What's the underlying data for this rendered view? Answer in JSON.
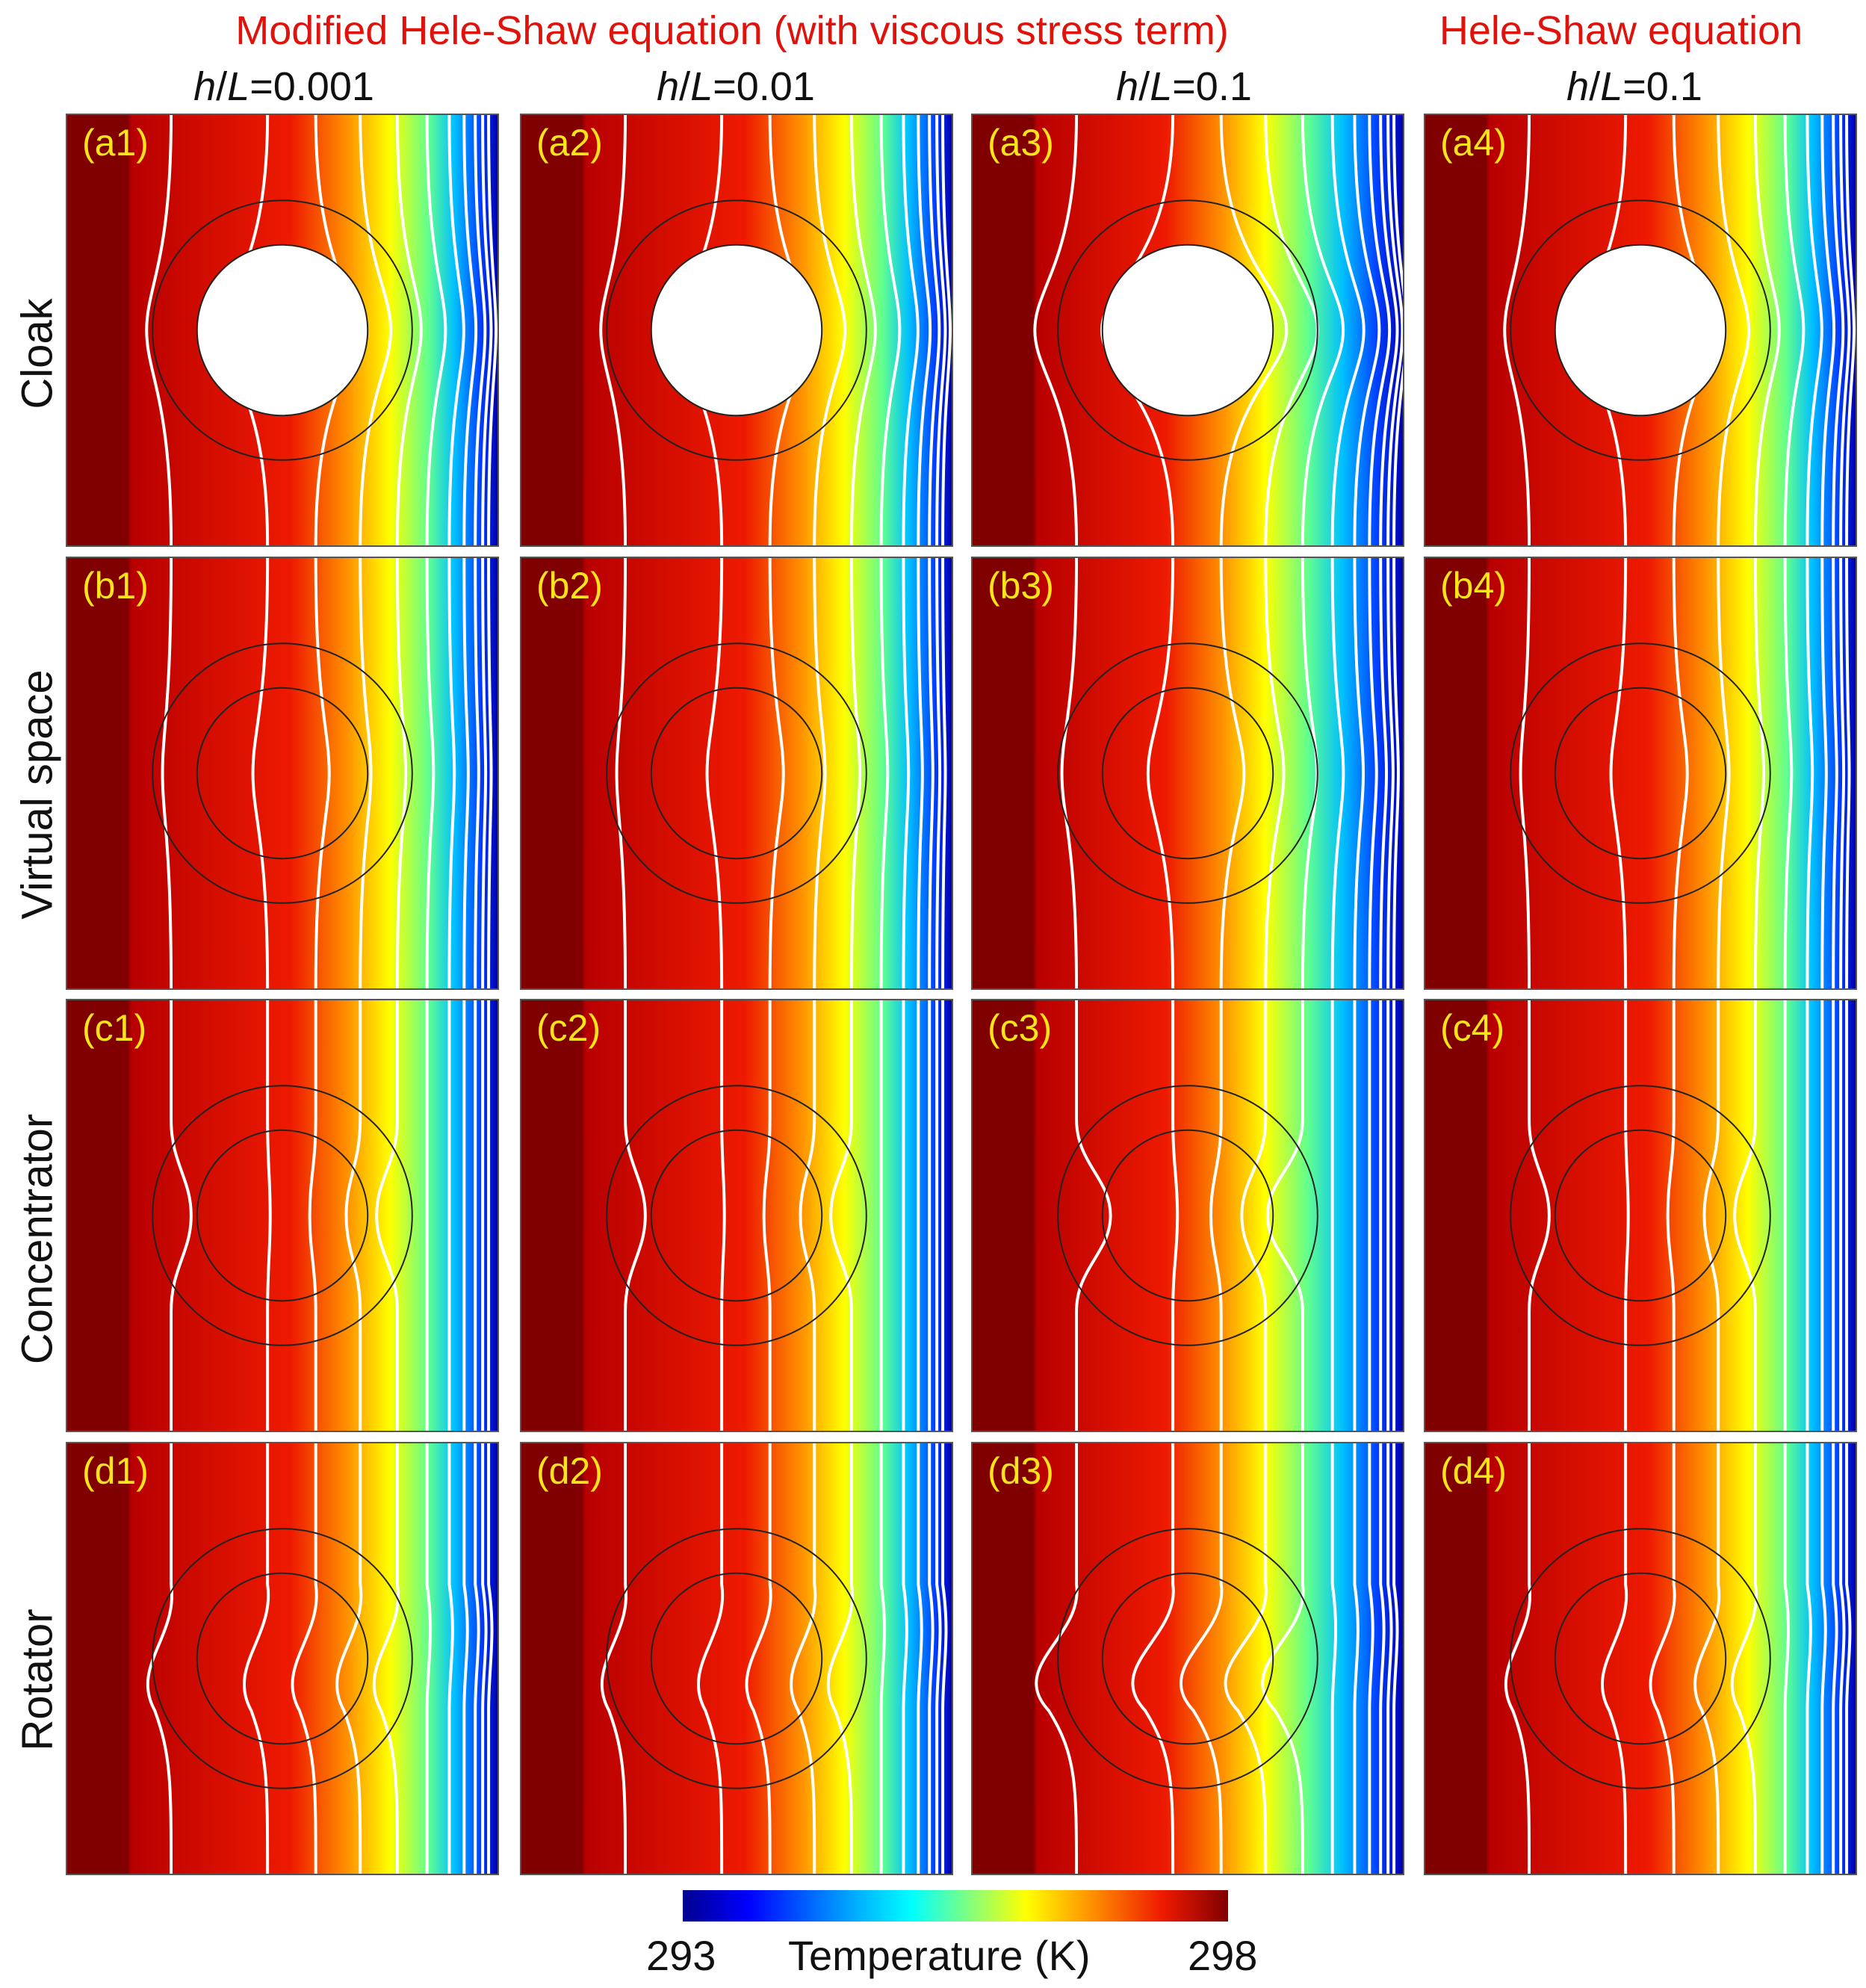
{
  "headers": {
    "modified": "Modified Hele-Shaw equation (with viscous stress term)",
    "heleshaw": "Hele-Shaw equation"
  },
  "columns": [
    {
      "h": "h",
      "slash": "/",
      "l": "L",
      "value": "=0.001"
    },
    {
      "h": "h",
      "slash": "/",
      "l": "L",
      "value": "=0.01"
    },
    {
      "h": "h",
      "slash": "/",
      "l": "L",
      "value": "=0.1"
    },
    {
      "h": "h",
      "slash": "/",
      "l": "L",
      "value": "=0.1"
    }
  ],
  "rows": [
    {
      "label": "Cloak",
      "kind": "cloak",
      "panels": [
        "(a1)",
        "(a2)",
        "(a3)",
        "(a4)"
      ]
    },
    {
      "label": "Virtual space",
      "kind": "virtual",
      "panels": [
        "(b1)",
        "(b2)",
        "(b3)",
        "(b4)"
      ]
    },
    {
      "label": "Concentrator",
      "kind": "concentrator",
      "panels": [
        "(c1)",
        "(c2)",
        "(c3)",
        "(c4)"
      ]
    },
    {
      "label": "Rotator",
      "kind": "rotator",
      "panels": [
        "(d1)",
        "(d2)",
        "(d3)",
        "(d4)"
      ]
    }
  ],
  "colorbar": {
    "min": "293",
    "max": "298",
    "title": "Temperature (K)"
  },
  "colors": {
    "header_red": "#e0120c",
    "panel_label": "#ffe41a",
    "isotherm": "#ffffff"
  }
}
